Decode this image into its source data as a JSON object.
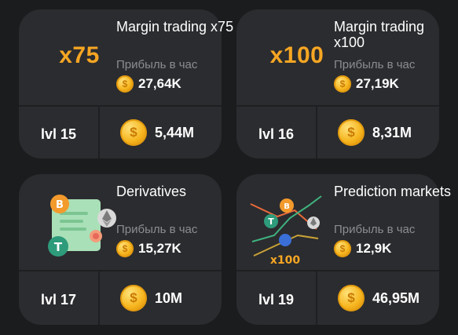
{
  "cards": [
    {
      "multiplier": "x75",
      "title": "Margin trading x75",
      "profit_label": "Прибыль в час",
      "profit_value": "27,64K",
      "level": "lvl 15",
      "cost": "5,44M"
    },
    {
      "multiplier": "x100",
      "title": "Margin trading x100",
      "profit_label": "Прибыль в час",
      "profit_value": "27,19K",
      "level": "lvl 16",
      "cost": "8,31M"
    },
    {
      "title": "Derivatives",
      "profit_label": "Прибыль в час",
      "profit_value": "15,27K",
      "level": "lvl 17",
      "cost": "10M"
    },
    {
      "title": "Prediction markets",
      "art_label": "x100",
      "profit_label": "Прибыль в час",
      "profit_value": "12,9K",
      "level": "lvl 19",
      "cost": "46,95M"
    }
  ],
  "coin_symbol": "$",
  "colors": {
    "accent": "#f6a623",
    "card_bg": "#2b2c2f",
    "page_bg": "#1b1c1e",
    "muted_text": "#8c8d91"
  }
}
